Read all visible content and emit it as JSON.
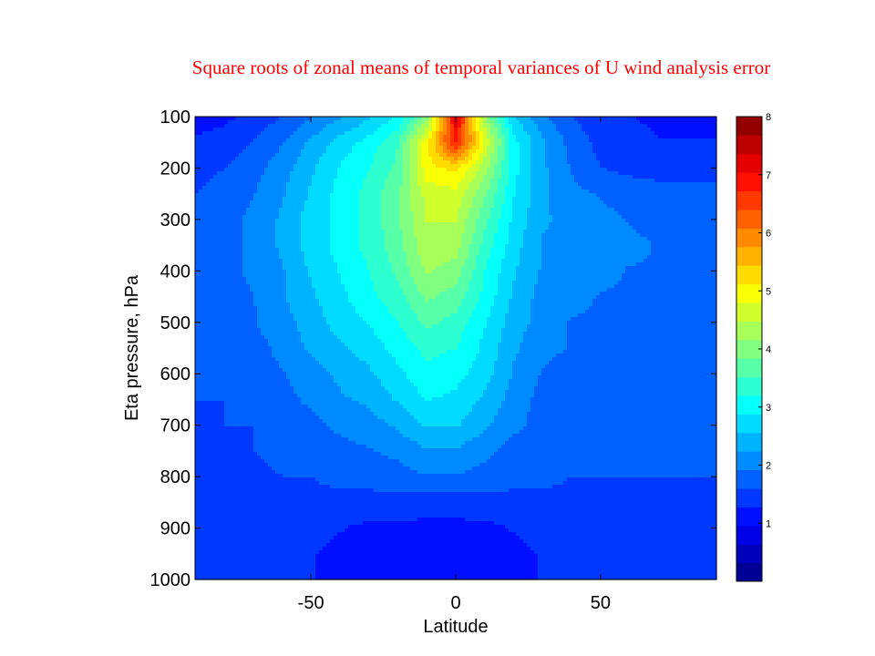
{
  "page": {
    "title": "Square roots of zonal means of temporal variances of U wind analysis error",
    "title_color": "#ff0000"
  },
  "chart_data": {
    "type": "heatmap",
    "title": "Square roots of zonal means of temporal variances of U wind analysis error",
    "xlabel": "Latitude",
    "ylabel": "Eta pressure, hPa",
    "xlim": [
      -90,
      90
    ],
    "ylim": [
      1000,
      100
    ],
    "x_ticks": [
      -50,
      0,
      50
    ],
    "x_tick_labels": [
      "-50",
      "0",
      "50"
    ],
    "y_ticks": [
      100,
      200,
      300,
      400,
      500,
      600,
      700,
      800,
      900,
      1000
    ],
    "y_tick_labels": [
      "100",
      "200",
      "300",
      "400",
      "500",
      "600",
      "700",
      "800",
      "900",
      "1000"
    ],
    "grid": false,
    "colorbar": {
      "range": [
        0,
        8
      ],
      "levels": 25,
      "ticks": [
        1,
        2,
        3,
        4,
        5,
        6,
        7,
        8
      ],
      "tick_labels": [
        "1",
        "2",
        "3",
        "4",
        "5",
        "6",
        "7",
        "8"
      ],
      "colormap": "jet"
    },
    "field": {
      "latitudes": [
        -90,
        -80,
        -70,
        -60,
        -50,
        -40,
        -30,
        -20,
        -10,
        0,
        10,
        20,
        30,
        40,
        50,
        60,
        70,
        80,
        90
      ],
      "pressures": [
        100,
        150,
        200,
        250,
        300,
        350,
        400,
        450,
        500,
        550,
        600,
        650,
        700,
        750,
        800,
        850,
        900,
        950,
        1000
      ],
      "values": [
        [
          1.2,
          1.2,
          1.4,
          1.6,
          1.9,
          2.2,
          2.5,
          2.9,
          4.0,
          7.2,
          4.2,
          2.6,
          2.0,
          1.6,
          1.4,
          1.3,
          1.2,
          1.2,
          1.2
        ],
        [
          1.3,
          1.4,
          1.6,
          1.9,
          2.3,
          2.7,
          3.0,
          3.5,
          5.0,
          6.8,
          4.8,
          3.0,
          2.3,
          1.8,
          1.5,
          1.4,
          1.3,
          1.3,
          1.3
        ],
        [
          1.5,
          1.6,
          1.8,
          2.1,
          2.5,
          2.9,
          3.2,
          3.6,
          5.0,
          5.2,
          4.3,
          3.0,
          2.3,
          1.9,
          1.6,
          1.5,
          1.5,
          1.5,
          1.5
        ],
        [
          1.6,
          1.7,
          1.9,
          2.2,
          2.6,
          3.0,
          3.3,
          3.8,
          4.6,
          4.7,
          3.9,
          2.9,
          2.3,
          2.0,
          1.9,
          1.8,
          1.7,
          1.7,
          1.7
        ],
        [
          1.7,
          1.8,
          2.0,
          2.3,
          2.7,
          3.0,
          3.3,
          3.8,
          4.5,
          4.5,
          3.6,
          2.8,
          2.3,
          2.1,
          2.0,
          1.9,
          1.8,
          1.8,
          1.8
        ],
        [
          1.7,
          1.8,
          2.0,
          2.3,
          2.7,
          3.0,
          3.3,
          3.7,
          4.4,
          4.3,
          3.4,
          2.7,
          2.2,
          2.1,
          2.0,
          2.0,
          1.9,
          1.8,
          1.8
        ],
        [
          1.7,
          1.8,
          2.0,
          2.2,
          2.6,
          2.9,
          3.2,
          3.6,
          4.2,
          4.0,
          3.2,
          2.6,
          2.2,
          2.0,
          2.0,
          1.9,
          1.9,
          1.8,
          1.8
        ],
        [
          1.7,
          1.8,
          1.9,
          2.2,
          2.5,
          2.8,
          3.1,
          3.4,
          3.9,
          3.7,
          3.1,
          2.5,
          2.1,
          2.0,
          1.9,
          1.9,
          1.8,
          1.8,
          1.8
        ],
        [
          1.6,
          1.7,
          1.9,
          2.1,
          2.4,
          2.7,
          2.9,
          3.2,
          3.6,
          3.4,
          2.9,
          2.4,
          2.1,
          1.9,
          1.9,
          1.8,
          1.8,
          1.7,
          1.7
        ],
        [
          1.6,
          1.7,
          1.8,
          2.0,
          2.3,
          2.5,
          2.7,
          3.0,
          3.3,
          3.2,
          2.8,
          2.3,
          2.0,
          1.9,
          1.8,
          1.8,
          1.7,
          1.7,
          1.7
        ],
        [
          1.6,
          1.6,
          1.8,
          1.9,
          2.1,
          2.3,
          2.5,
          2.8,
          3.1,
          3.0,
          2.7,
          2.2,
          1.9,
          1.8,
          1.8,
          1.7,
          1.7,
          1.7,
          1.6
        ],
        [
          1.6,
          1.6,
          1.7,
          1.8,
          2.0,
          2.2,
          2.3,
          2.6,
          2.9,
          2.8,
          2.5,
          2.1,
          1.8,
          1.8,
          1.7,
          1.7,
          1.7,
          1.6,
          1.6
        ],
        [
          1.5,
          1.6,
          1.6,
          1.7,
          1.8,
          2.0,
          2.1,
          2.3,
          2.6,
          2.6,
          2.3,
          2.0,
          1.8,
          1.7,
          1.7,
          1.7,
          1.6,
          1.6,
          1.6
        ],
        [
          1.5,
          1.5,
          1.6,
          1.7,
          1.7,
          1.8,
          1.9,
          2.0,
          2.2,
          2.2,
          2.0,
          1.8,
          1.7,
          1.7,
          1.7,
          1.6,
          1.6,
          1.6,
          1.6
        ],
        [
          1.5,
          1.5,
          1.5,
          1.6,
          1.6,
          1.7,
          1.7,
          1.8,
          1.9,
          1.9,
          1.8,
          1.7,
          1.7,
          1.6,
          1.6,
          1.6,
          1.6,
          1.6,
          1.6
        ],
        [
          1.5,
          1.5,
          1.5,
          1.5,
          1.5,
          1.5,
          1.5,
          1.5,
          1.4,
          1.4,
          1.5,
          1.5,
          1.5,
          1.5,
          1.5,
          1.5,
          1.5,
          1.5,
          1.5
        ],
        [
          1.5,
          1.5,
          1.5,
          1.4,
          1.4,
          1.3,
          1.2,
          1.2,
          1.2,
          1.2,
          1.2,
          1.3,
          1.4,
          1.4,
          1.4,
          1.4,
          1.4,
          1.4,
          1.4
        ],
        [
          1.5,
          1.6,
          1.5,
          1.4,
          1.3,
          1.2,
          1.1,
          1.1,
          1.1,
          1.1,
          1.1,
          1.2,
          1.3,
          1.4,
          1.4,
          1.4,
          1.4,
          1.4,
          1.4
        ],
        [
          1.5,
          1.6,
          1.5,
          1.4,
          1.3,
          1.2,
          1.1,
          1.1,
          1.1,
          1.1,
          1.1,
          1.2,
          1.3,
          1.4,
          1.4,
          1.4,
          1.4,
          1.4,
          1.4
        ]
      ]
    }
  }
}
